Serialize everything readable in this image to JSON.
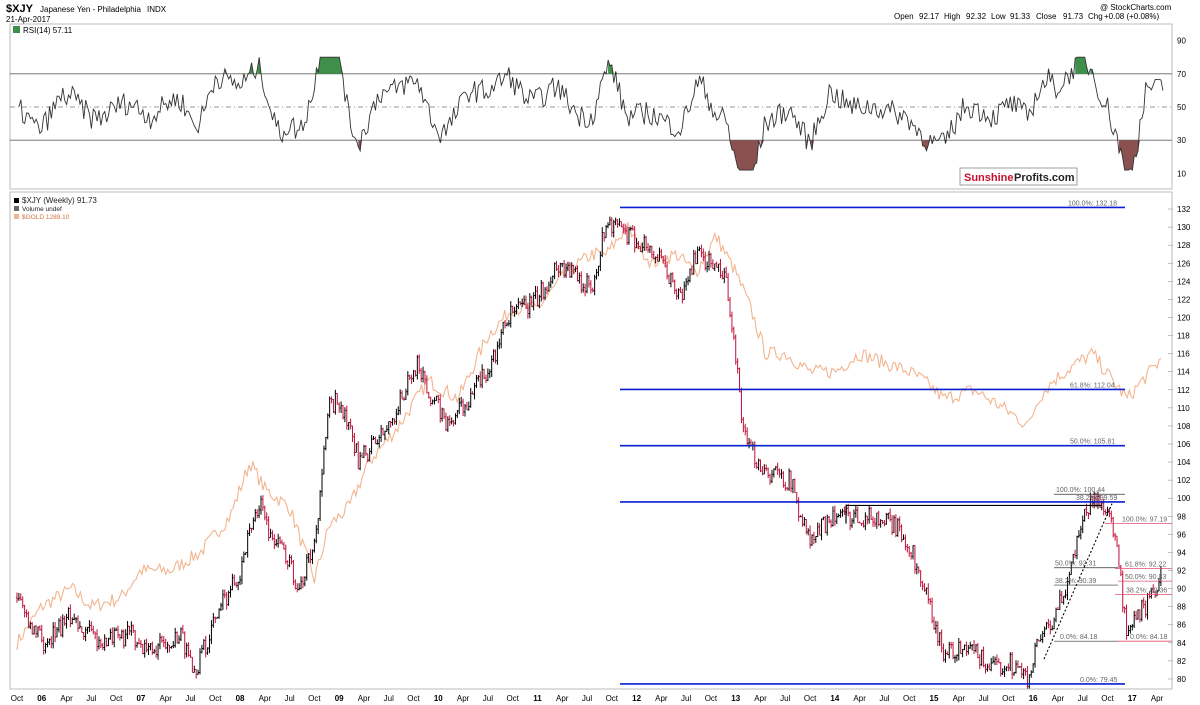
{
  "header": {
    "symbol": "$XJY",
    "name": "Japanese Yen - Philadelphia",
    "exchange": "INDX",
    "date": "21-Apr-2017",
    "copyright": "@ StockCharts.com",
    "open_label": "Open",
    "open": "92.17",
    "high_label": "High",
    "high": "92.32",
    "low_label": "Low",
    "low": "91.33",
    "close_label": "Close",
    "close": "91.73",
    "chg_label": "Chg",
    "chg": "+0.08 (+0.08%)"
  },
  "watermark": {
    "part1": "Sunshine",
    "part2": "Profits.com"
  },
  "colors": {
    "price_up": "#000000",
    "price_down": "#c0103a",
    "gold": "#f2b58f",
    "fib_blue": "#0a1fd0",
    "fib_red": "#e05070",
    "rsi_line": "#333333",
    "rsi_overbought_fill": "#3f8f4a",
    "rsi_oversold_fill": "#8b5050"
  },
  "rsi_panel": {
    "label": "RSI(14) 57.11",
    "ticks": [
      "90",
      "70",
      "50",
      "30",
      "10"
    ],
    "overbought": 70,
    "oversold": 30,
    "ylim": [
      0,
      100
    ]
  },
  "price_panel": {
    "legend": [
      {
        "text": "$XJY (Weekly) 91.73",
        "icon": "candlestick-icon"
      },
      {
        "text": "Volume undef",
        "icon": "bar-icon"
      },
      {
        "text": "$GOLD 1289.10",
        "icon": "line-icon"
      }
    ],
    "ticks": [
      "132",
      "130",
      "128",
      "126",
      "124",
      "122",
      "120",
      "118",
      "116",
      "114",
      "112",
      "110",
      "108",
      "106",
      "104",
      "102",
      "100",
      "98",
      "96",
      "94",
      "92",
      "90",
      "88",
      "86",
      "84",
      "82",
      "80"
    ],
    "ylim": [
      79,
      133
    ]
  },
  "x_axis": {
    "labels": [
      "Oct",
      "06",
      "Apr",
      "Jul",
      "Oct",
      "07",
      "Apr",
      "Jul",
      "Oct",
      "08",
      "Apr",
      "Jul",
      "Oct",
      "09",
      "Apr",
      "Jul",
      "Oct",
      "10",
      "Apr",
      "Jul",
      "Oct",
      "11",
      "Apr",
      "Jul",
      "Oct",
      "12",
      "Apr",
      "Jul",
      "Oct",
      "13",
      "Apr",
      "Jul",
      "Oct",
      "14",
      "Apr",
      "Jul",
      "Oct",
      "15",
      "Apr",
      "Jul",
      "Oct",
      "16",
      "Apr",
      "Jul",
      "Oct",
      "17",
      "Apr"
    ]
  },
  "chart_data": {
    "type": "line",
    "title": "$XJY Japanese Yen - Philadelphia INDX",
    "x_range": [
      "2005-10",
      "2017-04"
    ],
    "ylim": [
      79,
      133
    ],
    "series": [
      {
        "name": "$XJY (Weekly) 91.73",
        "x": [
          2005.75,
          2006.0,
          2006.3,
          2006.6,
          2006.9,
          2007.1,
          2007.4,
          2007.55,
          2007.8,
          2008.0,
          2008.2,
          2008.3,
          2008.45,
          2008.6,
          2008.75,
          2008.9,
          2009.0,
          2009.2,
          2009.5,
          2009.8,
          2009.9,
          2010.1,
          2010.3,
          2010.5,
          2010.7,
          2010.85,
          2011.0,
          2011.2,
          2011.35,
          2011.55,
          2011.7,
          2011.9,
          2012.1,
          2012.25,
          2012.45,
          2012.6,
          2012.75,
          2012.9,
          2013.1,
          2013.3,
          2013.55,
          2013.75,
          2013.95,
          2014.2,
          2014.4,
          2014.6,
          2014.75,
          2014.9,
          2015.1,
          2015.4,
          2015.6,
          2015.75,
          2015.95,
          2016.05,
          2016.2,
          2016.35,
          2016.5,
          2016.6,
          2016.75,
          2016.85,
          2016.95,
          2017.05,
          2017.2,
          2017.3
        ],
        "values": [
          89,
          84,
          87,
          84,
          85,
          83,
          85,
          81,
          88,
          92,
          100,
          96,
          94,
          90,
          95,
          110,
          111,
          104,
          108,
          115,
          112,
          108,
          111,
          114,
          120,
          121,
          122,
          126,
          125,
          123,
          131,
          129,
          128,
          126,
          122,
          127,
          126,
          124,
          106,
          103,
          102,
          95,
          98,
          98,
          98,
          97,
          95,
          90,
          83,
          83,
          81,
          82,
          80,
          84,
          86,
          91,
          98,
          100,
          99,
          94,
          84,
          87,
          89,
          91.73
        ]
      },
      {
        "name": "$GOLD 1289.10",
        "x": [
          2005.75,
          2006.0,
          2006.3,
          2006.5,
          2006.8,
          2007.0,
          2007.3,
          2007.6,
          2007.9,
          2008.1,
          2008.25,
          2008.5,
          2008.75,
          2008.9,
          2009.1,
          2009.3,
          2009.6,
          2009.9,
          2010.2,
          2010.5,
          2010.75,
          2011.0,
          2011.3,
          2011.55,
          2011.7,
          2011.9,
          2012.15,
          2012.4,
          2012.6,
          2012.8,
          2013.0,
          2013.15,
          2013.3,
          2013.5,
          2013.75,
          2014.0,
          2014.25,
          2014.5,
          2014.75,
          2014.9,
          2015.1,
          2015.4,
          2015.7,
          2015.95,
          2016.05,
          2016.2,
          2016.45,
          2016.6,
          2016.8,
          2016.95,
          2017.1,
          2017.3
        ],
        "values": [
          84,
          88,
          90,
          88,
          89,
          92,
          92,
          94,
          98,
          104,
          101,
          99,
          91,
          97,
          99,
          104,
          108,
          113,
          111,
          118,
          121,
          121,
          125,
          127,
          127,
          130,
          126,
          127,
          125,
          129,
          125,
          121,
          116,
          116,
          114,
          114,
          116,
          115,
          114,
          113,
          111,
          112,
          110,
          108,
          111,
          113,
          115,
          116,
          113,
          111,
          113,
          115.5
        ]
      }
    ],
    "fibonacci_levels": [
      {
        "label": "100.0%: 132.18",
        "value": 132.18
      },
      {
        "label": "61.8%: 112.04",
        "value": 112.04
      },
      {
        "label": "50.0%: 105.81",
        "value": 105.81
      },
      {
        "label": "100.0%: 100.44",
        "value": 100.44
      },
      {
        "label": "38.2%: 99.59",
        "value": 99.59
      },
      {
        "label": "100.0%: 97.19",
        "value": 97.19
      },
      {
        "label": "61.8%: 92.22",
        "value": 92.22
      },
      {
        "label": "50.0%: 92.31",
        "value": 92.31
      },
      {
        "label": "50.0%: 90.83",
        "value": 90.83
      },
      {
        "label": "38.2%: 90.39",
        "value": 90.39
      },
      {
        "label": "38.2%: 89.36",
        "value": 89.36
      },
      {
        "label": "0.0%: 84.18",
        "value": 84.18
      },
      {
        "label": "0.0%: 84.18",
        "value": 84.18
      },
      {
        "label": "0.0%: 79.45",
        "value": 79.45
      }
    ]
  }
}
